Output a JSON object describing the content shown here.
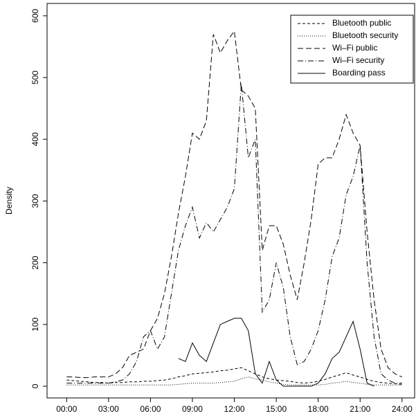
{
  "chart_data": {
    "type": "line",
    "y_label": "Density",
    "x": [
      0,
      0.5,
      1,
      1.5,
      2,
      2.5,
      3,
      3.5,
      4,
      4.5,
      5,
      5.5,
      6,
      6.5,
      7,
      7.5,
      8,
      8.5,
      9,
      9.5,
      10,
      10.5,
      11,
      11.5,
      12,
      12.5,
      13,
      13.5,
      14,
      14.5,
      15,
      15.5,
      16,
      16.5,
      17,
      17.5,
      18,
      18.5,
      19,
      19.5,
      20,
      20.5,
      21,
      21.5,
      22,
      22.5,
      23,
      23.5,
      24
    ],
    "xlim": [
      -1.4,
      24.9
    ],
    "xticks": [
      {
        "value": 0,
        "label": "00:00"
      },
      {
        "value": 3,
        "label": "03:00"
      },
      {
        "value": 6,
        "label": "06:00"
      },
      {
        "value": 9,
        "label": "09:00"
      },
      {
        "value": 12,
        "label": "12:00"
      },
      {
        "value": 15,
        "label": "15:00"
      },
      {
        "value": 18,
        "label": "18:00"
      },
      {
        "value": 21,
        "label": "21:00"
      },
      {
        "value": 24,
        "label": "24:00"
      }
    ],
    "ylim": [
      -19,
      620
    ],
    "yticks": [
      0,
      100,
      200,
      300,
      400,
      500,
      600
    ],
    "legend": "top-right",
    "series": [
      {
        "name": "Bluetooth public",
        "color": "#000000",
        "dash": "4,3",
        "values": [
          10,
          9,
          8,
          7,
          6,
          6,
          5,
          6,
          6,
          7,
          7,
          8,
          8,
          9,
          10,
          12,
          15,
          17,
          20,
          21,
          22,
          23,
          25,
          26,
          28,
          30,
          25,
          20,
          15,
          12,
          10,
          9,
          8,
          6,
          5,
          6,
          8,
          11,
          15,
          18,
          22,
          18,
          15,
          11,
          8,
          6,
          5,
          4,
          3
        ]
      },
      {
        "name": "Bluetooth security",
        "color": "#000000",
        "dash": "1,2",
        "values": [
          2,
          2,
          2,
          2,
          2,
          2,
          2,
          2,
          2,
          2,
          2,
          2,
          2,
          2,
          2,
          2,
          3,
          4,
          5,
          5,
          5,
          5,
          6,
          7,
          8,
          12,
          15,
          12,
          10,
          7,
          5,
          3,
          2,
          2,
          2,
          2,
          2,
          3,
          5,
          6,
          8,
          6,
          5,
          3,
          2,
          2,
          2,
          2,
          2
        ]
      },
      {
        "name": "Wi–Fi public",
        "color": "#000000",
        "dash": "8,4",
        "values": [
          15,
          15,
          14,
          14,
          15,
          15,
          15,
          20,
          30,
          50,
          55,
          60,
          90,
          110,
          150,
          210,
          280,
          340,
          410,
          400,
          430,
          570,
          540,
          560,
          575,
          480,
          470,
          450,
          220,
          260,
          260,
          230,
          180,
          140,
          200,
          270,
          360,
          370,
          370,
          400,
          440,
          410,
          390,
          250,
          140,
          60,
          30,
          20,
          15
        ]
      },
      {
        "name": "Wi–Fi security",
        "color": "#000000",
        "dash": "8,3,1,3",
        "values": [
          5,
          5,
          5,
          5,
          5,
          5,
          5,
          7,
          10,
          20,
          40,
          80,
          90,
          60,
          80,
          150,
          220,
          260,
          290,
          240,
          265,
          250,
          270,
          290,
          320,
          490,
          370,
          400,
          120,
          140,
          200,
          160,
          80,
          35,
          40,
          60,
          90,
          140,
          210,
          240,
          310,
          340,
          390,
          200,
          80,
          20,
          10,
          5,
          5
        ]
      },
      {
        "name": "Boarding pass",
        "color": "#000000",
        "dash": "none",
        "values": [
          null,
          null,
          null,
          null,
          null,
          null,
          null,
          null,
          null,
          null,
          null,
          null,
          null,
          null,
          null,
          null,
          45,
          40,
          70,
          50,
          40,
          70,
          100,
          105,
          110,
          110,
          90,
          20,
          5,
          40,
          10,
          0,
          0,
          0,
          0,
          0,
          5,
          20,
          45,
          55,
          80,
          105,
          60,
          5,
          0,
          null,
          null,
          null,
          null
        ]
      }
    ]
  }
}
